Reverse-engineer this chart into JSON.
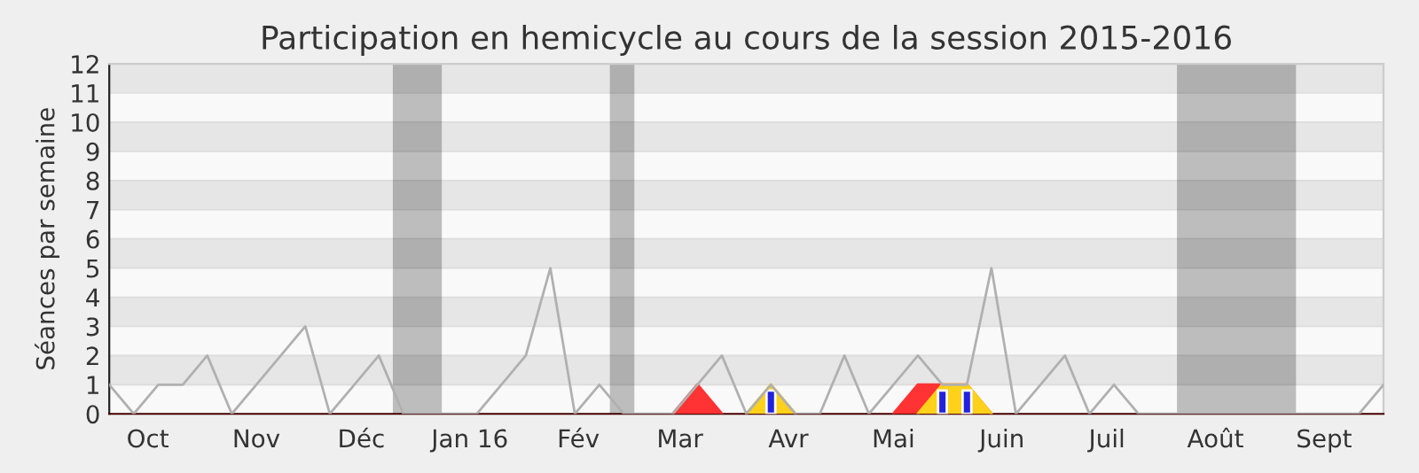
{
  "chart_data": {
    "type": "line",
    "title": "Participation en hemicycle au cours de la session 2015-2016",
    "ylabel": "Séances par semaine",
    "x": [
      "2015-09-20",
      "2015-09-27",
      "2015-10-04",
      "2015-10-11",
      "2015-10-18",
      "2015-10-25",
      "2015-11-01",
      "2015-11-08",
      "2015-11-15",
      "2015-11-22",
      "2015-11-29",
      "2015-12-06",
      "2015-12-13",
      "2015-12-20",
      "2015-12-27",
      "2016-01-03",
      "2016-01-10",
      "2016-01-17",
      "2016-01-24",
      "2016-01-31",
      "2016-02-07",
      "2016-02-14",
      "2016-02-21",
      "2016-02-28",
      "2016-03-06",
      "2016-03-13",
      "2016-03-20",
      "2016-03-27",
      "2016-04-03",
      "2016-04-10",
      "2016-04-17",
      "2016-04-24",
      "2016-05-01",
      "2016-05-08",
      "2016-05-15",
      "2016-05-22",
      "2016-05-29",
      "2016-06-05",
      "2016-06-12",
      "2016-06-19",
      "2016-06-26",
      "2016-07-03",
      "2016-07-10",
      "2016-07-17",
      "2016-07-24",
      "2016-07-31",
      "2016-08-07",
      "2016-08-14",
      "2016-08-21",
      "2016-08-28",
      "2016-09-04",
      "2016-09-11",
      "2016-09-18"
    ],
    "series": [
      {
        "type": "area",
        "color": "#ff3333",
        "values": [
          null,
          null,
          null,
          null,
          null,
          null,
          null,
          null,
          null,
          null,
          null,
          null,
          null,
          null,
          null,
          null,
          null,
          null,
          null,
          null,
          null,
          null,
          null,
          0,
          1,
          0,
          null,
          null,
          null,
          null,
          null,
          null,
          0,
          1,
          1,
          1,
          0,
          null,
          null,
          null,
          null,
          null,
          null,
          null,
          null,
          null,
          null,
          null,
          null,
          null,
          null,
          null,
          null
        ]
      },
      {
        "type": "area",
        "color": "#ffd11a",
        "values": [
          null,
          null,
          null,
          null,
          null,
          null,
          null,
          null,
          null,
          null,
          null,
          null,
          null,
          null,
          null,
          null,
          null,
          null,
          null,
          null,
          null,
          null,
          null,
          null,
          null,
          null,
          0,
          1,
          0,
          null,
          null,
          null,
          null,
          0,
          1,
          1,
          0,
          null,
          null,
          null,
          null,
          null,
          null,
          null,
          null,
          null,
          null,
          null,
          null,
          null,
          null,
          null,
          null
        ]
      },
      {
        "type": "bar",
        "color": "#2222dd",
        "values": [
          null,
          null,
          null,
          null,
          null,
          null,
          null,
          null,
          null,
          null,
          null,
          null,
          null,
          null,
          null,
          null,
          null,
          null,
          null,
          null,
          null,
          null,
          null,
          null,
          null,
          null,
          null,
          0.8,
          null,
          null,
          null,
          null,
          null,
          null,
          0.8,
          0.8,
          null,
          null,
          null,
          null,
          null,
          null,
          null,
          null,
          null,
          null,
          null,
          null,
          null,
          null,
          null,
          null,
          null
        ]
      },
      {
        "color": "#b0b0b0",
        "values": [
          1,
          0,
          1,
          1,
          2,
          0,
          1,
          2,
          3,
          0,
          1,
          2,
          0,
          0,
          0,
          0,
          1,
          2,
          5,
          0,
          1,
          0,
          0,
          0,
          1,
          2,
          0,
          1,
          0,
          0,
          2,
          0,
          1,
          2,
          1,
          1,
          5,
          0,
          1,
          2,
          0,
          1,
          0,
          0,
          0,
          0,
          0,
          0,
          0,
          0,
          0,
          0,
          1
        ]
      }
    ],
    "xlim": [
      "2015-09-20",
      "2016-09-18"
    ],
    "xticks": [
      {
        "value": "2015-10-01",
        "label": "Oct"
      },
      {
        "value": "2015-11-01",
        "label": "Nov"
      },
      {
        "value": "2015-12-01",
        "label": "Déc"
      },
      {
        "value": "2016-01-01",
        "label": "Jan 16"
      },
      {
        "value": "2016-02-01",
        "label": "Fév"
      },
      {
        "value": "2016-03-01",
        "label": "Mar"
      },
      {
        "value": "2016-04-01",
        "label": "Avr"
      },
      {
        "value": "2016-05-01",
        "label": "Mai"
      },
      {
        "value": "2016-06-01",
        "label": "Juin"
      },
      {
        "value": "2016-07-01",
        "label": "Juil"
      },
      {
        "value": "2016-08-01",
        "label": "Août"
      },
      {
        "value": "2016-09-01",
        "label": "Sept"
      }
    ],
    "ylim": [
      0,
      12
    ],
    "yticks": [
      0,
      1,
      2,
      3,
      4,
      5,
      6,
      7,
      8,
      9,
      10,
      11,
      12
    ],
    "bands": [
      {
        "axis": "x",
        "from": "2015-12-10",
        "to": "2015-12-24"
      },
      {
        "axis": "x",
        "from": "2016-02-10",
        "to": "2016-02-17"
      },
      {
        "axis": "x",
        "from": "2016-07-21",
        "to": "2016-08-24"
      }
    ],
    "grid": "y"
  }
}
